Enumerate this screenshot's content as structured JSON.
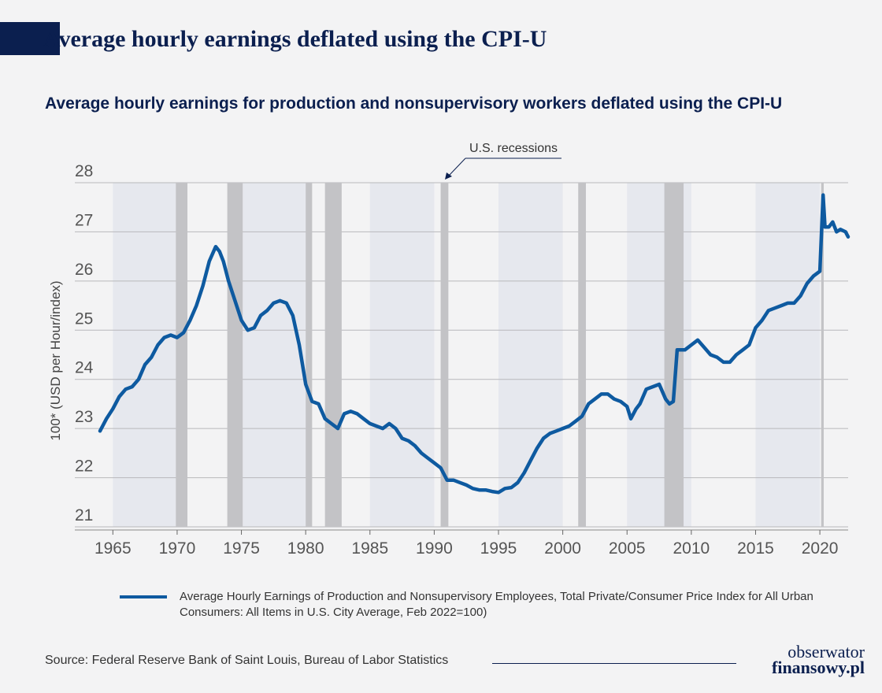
{
  "page": {
    "title": "Average hourly earnings deflated using the CPI-U",
    "source": "Source: Federal Reserve Bank of Saint Louis, Bureau of Labor Statistics",
    "logo_line1": "obserwator",
    "logo_line2": "finansowy.pl"
  },
  "colors": {
    "line": "#0e5aa0",
    "recession": "#c3c3c6",
    "band": "#e6e8ee",
    "grid": "#b8b8bb",
    "text": "#333333",
    "navy": "#0b1f4f"
  },
  "chart_data": {
    "type": "line",
    "title": "Average hourly earnings for production and nonsupervisory workers deflated using the CPI-U",
    "ylabel": "100* (USD per Hour/index)",
    "xlabel": "",
    "xlim": [
      1964,
      2022.2
    ],
    "ylim": [
      21,
      28
    ],
    "y_ticks": [
      21,
      22,
      23,
      24,
      25,
      26,
      27,
      28
    ],
    "x_ticks": [
      1965,
      1970,
      1975,
      1980,
      1985,
      1990,
      1995,
      2000,
      2005,
      2010,
      2015,
      2020
    ],
    "recession_annotation": "U.S. recessions",
    "legend": [
      "Average Hourly Earnings of Production and Nonsupervisory Employees, Total Private/Consumer Price Index for All Urban Consumers: All Items in U.S. City Average, Feb 2022=100)"
    ],
    "recessions": [
      [
        1969.9,
        1970.8
      ],
      [
        1973.9,
        1975.1
      ],
      [
        1980.0,
        1980.5
      ],
      [
        1981.5,
        1982.8
      ],
      [
        1990.5,
        1991.1
      ],
      [
        2001.2,
        2001.8
      ],
      [
        2007.9,
        2009.4
      ],
      [
        2020.1,
        2020.3
      ]
    ],
    "bands": [
      [
        1965,
        1970
      ],
      [
        1975,
        1980
      ],
      [
        1985,
        1990
      ],
      [
        1995,
        2000
      ],
      [
        2005,
        2010
      ],
      [
        2015,
        2020
      ]
    ],
    "series": [
      {
        "name": "Average Hourly Earnings of Production and Nonsupervisory Employees, Total Private/Consumer Price Index",
        "x": [
          1964.0,
          1964.5,
          1965.0,
          1965.5,
          1966.0,
          1966.5,
          1967.0,
          1967.5,
          1968.0,
          1968.5,
          1969.0,
          1969.5,
          1970.0,
          1970.5,
          1971.0,
          1971.5,
          1972.0,
          1972.5,
          1973.0,
          1973.3,
          1973.6,
          1974.0,
          1974.5,
          1975.0,
          1975.5,
          1976.0,
          1976.5,
          1977.0,
          1977.5,
          1978.0,
          1978.5,
          1979.0,
          1979.5,
          1980.0,
          1980.5,
          1981.0,
          1981.5,
          1982.0,
          1982.5,
          1983.0,
          1983.5,
          1984.0,
          1984.5,
          1985.0,
          1985.5,
          1986.0,
          1986.5,
          1987.0,
          1987.5,
          1988.0,
          1988.5,
          1989.0,
          1989.5,
          1990.0,
          1990.5,
          1991.0,
          1991.5,
          1992.0,
          1992.5,
          1993.0,
          1993.5,
          1994.0,
          1994.5,
          1995.0,
          1995.5,
          1996.0,
          1996.5,
          1997.0,
          1997.5,
          1998.0,
          1998.5,
          1999.0,
          1999.5,
          2000.0,
          2000.5,
          2001.0,
          2001.5,
          2002.0,
          2002.5,
          2003.0,
          2003.5,
          2004.0,
          2004.5,
          2005.0,
          2005.3,
          2005.7,
          2006.0,
          2006.5,
          2007.0,
          2007.5,
          2008.0,
          2008.3,
          2008.6,
          2008.9,
          2009.0,
          2009.5,
          2010.0,
          2010.5,
          2011.0,
          2011.5,
          2012.0,
          2012.5,
          2013.0,
          2013.5,
          2014.0,
          2014.5,
          2015.0,
          2015.5,
          2016.0,
          2016.5,
          2017.0,
          2017.5,
          2018.0,
          2018.5,
          2019.0,
          2019.5,
          2020.0,
          2020.25,
          2020.4,
          2020.7,
          2021.0,
          2021.3,
          2021.6,
          2022.0,
          2022.2
        ],
        "values": [
          22.95,
          23.2,
          23.4,
          23.65,
          23.8,
          23.85,
          24.0,
          24.3,
          24.45,
          24.7,
          24.85,
          24.9,
          24.85,
          24.95,
          25.2,
          25.5,
          25.9,
          26.4,
          26.7,
          26.6,
          26.4,
          26.0,
          25.6,
          25.2,
          25.0,
          25.05,
          25.3,
          25.4,
          25.55,
          25.6,
          25.55,
          25.3,
          24.7,
          23.9,
          23.55,
          23.5,
          23.2,
          23.1,
          23.0,
          23.3,
          23.35,
          23.3,
          23.2,
          23.1,
          23.05,
          23.0,
          23.1,
          23.0,
          22.8,
          22.75,
          22.65,
          22.5,
          22.4,
          22.3,
          22.2,
          21.95,
          21.95,
          21.9,
          21.85,
          21.78,
          21.75,
          21.75,
          21.72,
          21.7,
          21.78,
          21.8,
          21.9,
          22.1,
          22.35,
          22.6,
          22.8,
          22.9,
          22.95,
          23.0,
          23.05,
          23.15,
          23.25,
          23.5,
          23.6,
          23.7,
          23.7,
          23.6,
          23.55,
          23.45,
          23.2,
          23.4,
          23.5,
          23.8,
          23.85,
          23.9,
          23.6,
          23.5,
          23.55,
          24.6,
          24.6,
          24.6,
          24.7,
          24.8,
          24.65,
          24.5,
          24.45,
          24.35,
          24.35,
          24.5,
          24.6,
          24.7,
          25.05,
          25.2,
          25.4,
          25.45,
          25.5,
          25.55,
          25.55,
          25.7,
          25.95,
          26.1,
          26.2,
          27.75,
          27.1,
          27.1,
          27.2,
          27.0,
          27.05,
          27.0,
          26.9
        ]
      }
    ]
  }
}
